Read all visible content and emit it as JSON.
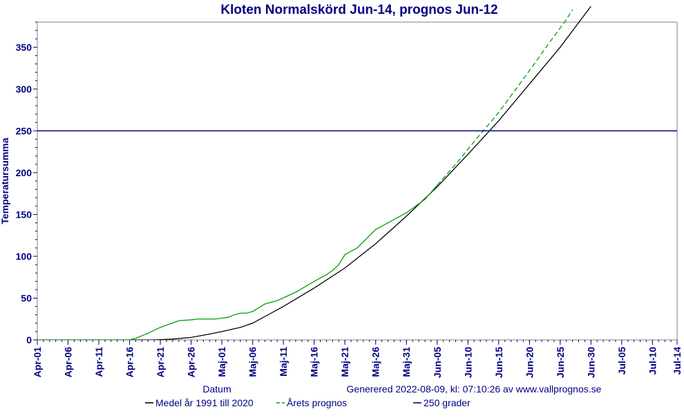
{
  "chart_data": {
    "type": "line",
    "title": "Kloten Normalskörd Jun-14, prognos Jun-12",
    "xlabel": "Datum",
    "ylabel": "Temperatursumma",
    "footer": "Generered 2022-08-09, kl: 07:10:26 av www.vallprognos.se",
    "ylim": [
      0,
      380
    ],
    "yticks": [
      0,
      50,
      100,
      150,
      200,
      250,
      300,
      350
    ],
    "x_start": "Apr-01",
    "x_end": "Jul-14",
    "xticks": [
      "Apr-01",
      "Apr-06",
      "Apr-11",
      "Apr-16",
      "Apr-21",
      "Apr-26",
      "Maj-01",
      "Maj-06",
      "Maj-11",
      "Maj-16",
      "Maj-21",
      "Maj-26",
      "Maj-31",
      "Jun-05",
      "Jun-10",
      "Jun-15",
      "Jun-20",
      "Jun-25",
      "Jun-30",
      "Jul-05",
      "Jul-10",
      "Jul-14"
    ],
    "grid": false,
    "legend_placement": "bottom",
    "series": [
      {
        "name": "Medel år 1991 till 2020",
        "color": "#000000",
        "style": "solid",
        "points": [
          [
            "Apr-01",
            0
          ],
          [
            "Apr-16",
            0
          ],
          [
            "Apr-20",
            0
          ],
          [
            "Apr-23",
            1
          ],
          [
            "Apr-26",
            3
          ],
          [
            "Apr-29",
            7
          ],
          [
            "Maj-01",
            10
          ],
          [
            "Maj-04",
            15
          ],
          [
            "Maj-06",
            20
          ],
          [
            "Maj-11",
            40
          ],
          [
            "Maj-16",
            62
          ],
          [
            "Maj-21",
            86
          ],
          [
            "Maj-26",
            115
          ],
          [
            "Maj-31",
            148
          ],
          [
            "Jun-05",
            183
          ],
          [
            "Jun-10",
            222
          ],
          [
            "Jun-15",
            262
          ],
          [
            "Jun-20",
            306
          ],
          [
            "Jun-25",
            350
          ],
          [
            "Jun-30",
            399
          ]
        ]
      },
      {
        "name": "Årets prognos",
        "color": "#00a000",
        "style": "solid-then-dashed",
        "points": [
          [
            "Apr-01",
            0
          ],
          [
            "Apr-16",
            0
          ],
          [
            "Apr-17",
            2
          ],
          [
            "Apr-19",
            8
          ],
          [
            "Apr-21",
            15
          ],
          [
            "Apr-24",
            23
          ],
          [
            "Apr-26",
            24
          ],
          [
            "Apr-27",
            25
          ],
          [
            "Apr-30",
            25
          ],
          [
            "Maj-01",
            26
          ],
          [
            "Maj-02",
            27
          ],
          [
            "Maj-03",
            30
          ],
          [
            "Maj-04",
            32
          ],
          [
            "Maj-05",
            32
          ],
          [
            "Maj-06",
            34
          ],
          [
            "Maj-08",
            43
          ],
          [
            "Maj-10",
            47
          ],
          [
            "Maj-13",
            57
          ],
          [
            "Maj-16",
            70
          ],
          [
            "Maj-18",
            78
          ],
          [
            "Maj-19",
            83
          ],
          [
            "Maj-20",
            90
          ],
          [
            "Maj-21",
            102
          ],
          [
            "Maj-23",
            110
          ],
          [
            "Maj-26",
            132
          ],
          [
            "Maj-28",
            140
          ],
          [
            "Maj-31",
            152
          ],
          [
            "Jun-03",
            168
          ],
          [
            "Jun-05",
            185
          ],
          [
            "Jun-08",
            210
          ],
          [
            "Jun-11",
            237
          ],
          [
            "Jun-15",
            272
          ],
          [
            "Jun-20",
            322
          ],
          [
            "Jun-23",
            353
          ],
          [
            "Jun-26",
            383
          ],
          [
            "Jun-27",
            395
          ]
        ],
        "dashed_from": "Jun-05"
      },
      {
        "name": "250 grader",
        "color": "#000080",
        "style": "solid",
        "points": [
          [
            "Apr-01",
            250
          ],
          [
            "Jul-14",
            250
          ]
        ]
      }
    ]
  }
}
